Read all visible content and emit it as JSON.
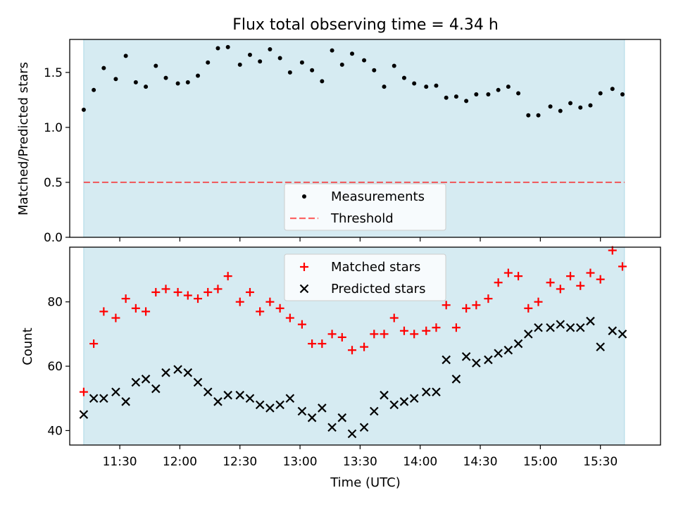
{
  "title": "Flux total observing time = 4.34 h",
  "xlabel": "Time (UTC)",
  "x_ticks": [
    "11:30",
    "12:00",
    "12:30",
    "13:00",
    "13:30",
    "14:00",
    "14:30",
    "15:00",
    "15:30"
  ],
  "colors": {
    "shade": "#add8e6",
    "measurement": "#000000",
    "threshold": "#ff0000",
    "matched": "#ff0000",
    "predicted": "#000000"
  },
  "chart_data": [
    {
      "type": "scatter",
      "ylabel": "Matched/Predicted stars",
      "ylim": [
        0.0,
        1.8
      ],
      "y_ticks": [
        "0.0",
        "0.5",
        "1.0",
        "1.5"
      ],
      "x_range": [
        "11:05",
        "16:00"
      ],
      "observing_window": [
        "11:12",
        "15:42"
      ],
      "threshold": 0.5,
      "legend": {
        "placement": "lower center",
        "entries": [
          "Measurements",
          "Threshold"
        ]
      },
      "series": [
        {
          "name": "Measurements",
          "x": [
            "11:12",
            "11:17",
            "11:22",
            "11:28",
            "11:33",
            "11:38",
            "11:43",
            "11:48",
            "11:53",
            "11:59",
            "12:04",
            "12:09",
            "12:14",
            "12:19",
            "12:24",
            "12:30",
            "12:35",
            "12:40",
            "12:45",
            "12:50",
            "12:55",
            "13:01",
            "13:06",
            "13:11",
            "13:16",
            "13:21",
            "13:26",
            "13:32",
            "13:37",
            "13:42",
            "13:47",
            "13:52",
            "13:57",
            "14:03",
            "14:08",
            "14:13",
            "14:18",
            "14:23",
            "14:28",
            "14:34",
            "14:39",
            "14:44",
            "14:49",
            "14:54",
            "14:59",
            "15:05",
            "15:10",
            "15:15",
            "15:20",
            "15:25",
            "15:30",
            "15:36",
            "15:41"
          ],
          "values": [
            1.16,
            1.34,
            1.54,
            1.44,
            1.65,
            1.41,
            1.37,
            1.56,
            1.45,
            1.4,
            1.41,
            1.47,
            1.59,
            1.72,
            1.73,
            1.57,
            1.66,
            1.6,
            1.71,
            1.63,
            1.5,
            1.59,
            1.52,
            1.42,
            1.7,
            1.57,
            1.67,
            1.61,
            1.52,
            1.37,
            1.56,
            1.45,
            1.4,
            1.37,
            1.38,
            1.27,
            1.28,
            1.24,
            1.3,
            1.3,
            1.34,
            1.37,
            1.31,
            1.11,
            1.11,
            1.19,
            1.15,
            1.22,
            1.18,
            1.2,
            1.31,
            1.35,
            1.3
          ]
        }
      ]
    },
    {
      "type": "scatter",
      "ylabel": "Count",
      "ylim": [
        35.5,
        97
      ],
      "y_ticks": [
        "40",
        "60",
        "80"
      ],
      "x_range": [
        "11:05",
        "16:00"
      ],
      "observing_window": [
        "11:12",
        "15:42"
      ],
      "legend": {
        "placement": "upper center",
        "entries": [
          "Matched stars",
          "Predicted stars"
        ]
      },
      "series": [
        {
          "name": "Matched stars",
          "x": [
            "11:12",
            "11:17",
            "11:22",
            "11:28",
            "11:33",
            "11:38",
            "11:43",
            "11:48",
            "11:53",
            "11:59",
            "12:04",
            "12:09",
            "12:14",
            "12:19",
            "12:24",
            "12:30",
            "12:35",
            "12:40",
            "12:45",
            "12:50",
            "12:55",
            "13:01",
            "13:06",
            "13:11",
            "13:16",
            "13:21",
            "13:26",
            "13:32",
            "13:37",
            "13:42",
            "13:47",
            "13:52",
            "13:57",
            "14:03",
            "14:08",
            "14:13",
            "14:18",
            "14:23",
            "14:28",
            "14:34",
            "14:39",
            "14:44",
            "14:49",
            "14:54",
            "14:59",
            "15:05",
            "15:10",
            "15:15",
            "15:20",
            "15:25",
            "15:30",
            "15:36",
            "15:41"
          ],
          "values": [
            52,
            67,
            77,
            75,
            81,
            78,
            77,
            83,
            84,
            83,
            82,
            81,
            83,
            84,
            88,
            80,
            83,
            77,
            80,
            78,
            75,
            73,
            67,
            67,
            70,
            69,
            65,
            66,
            70,
            70,
            75,
            71,
            70,
            71,
            72,
            79,
            72,
            78,
            79,
            81,
            86,
            89,
            88,
            78,
            80,
            86,
            84,
            88,
            85,
            89,
            87,
            96,
            91
          ]
        },
        {
          "name": "Predicted stars",
          "x": [
            "11:12",
            "11:17",
            "11:22",
            "11:28",
            "11:33",
            "11:38",
            "11:43",
            "11:48",
            "11:53",
            "11:59",
            "12:04",
            "12:09",
            "12:14",
            "12:19",
            "12:24",
            "12:30",
            "12:35",
            "12:40",
            "12:45",
            "12:50",
            "12:55",
            "13:01",
            "13:06",
            "13:11",
            "13:16",
            "13:21",
            "13:26",
            "13:32",
            "13:37",
            "13:42",
            "13:47",
            "13:52",
            "13:57",
            "14:03",
            "14:08",
            "14:13",
            "14:18",
            "14:23",
            "14:28",
            "14:34",
            "14:39",
            "14:44",
            "14:49",
            "14:54",
            "14:59",
            "15:05",
            "15:10",
            "15:15",
            "15:20",
            "15:25",
            "15:30",
            "15:36",
            "15:41"
          ],
          "values": [
            45,
            50,
            50,
            52,
            49,
            55,
            56,
            53,
            58,
            59,
            58,
            55,
            52,
            49,
            51,
            51,
            50,
            48,
            47,
            48,
            50,
            46,
            44,
            47,
            41,
            44,
            39,
            41,
            46,
            51,
            48,
            49,
            50,
            52,
            52,
            62,
            56,
            63,
            61,
            62,
            64,
            65,
            67,
            70,
            72,
            72,
            73,
            72,
            72,
            74,
            66,
            71,
            70
          ]
        }
      ]
    }
  ]
}
